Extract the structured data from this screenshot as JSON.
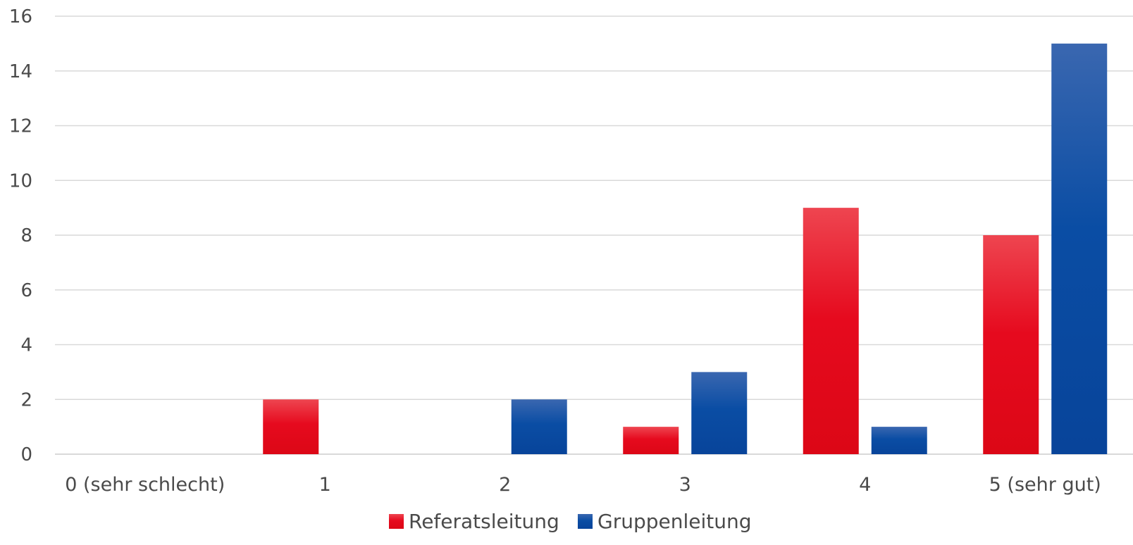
{
  "chart_data": {
    "type": "bar",
    "title": "",
    "xlabel": "",
    "ylabel": "",
    "categories": [
      "0 (sehr schlecht)",
      "1",
      "2",
      "3",
      "4",
      "5 (sehr gut)"
    ],
    "series": [
      {
        "name": "Referatsleitung",
        "values": [
          0,
          2,
          0,
          1,
          9,
          8
        ],
        "color": "#e30613"
      },
      {
        "name": "Gruppenleitung",
        "values": [
          0,
          0,
          2,
          3,
          1,
          15
        ],
        "color": "#0b4ea2"
      }
    ],
    "ylim": [
      0,
      16
    ],
    "yticks": [
      "0",
      "2",
      "4",
      "6",
      "8",
      "10",
      "12",
      "14",
      "16"
    ],
    "grid": true,
    "legend_position": "bottom-center"
  }
}
